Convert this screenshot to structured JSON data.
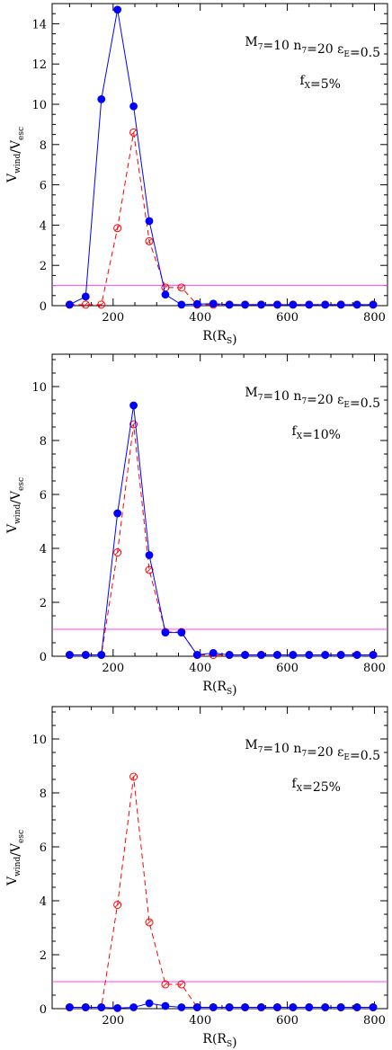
{
  "chart_data": [
    {
      "type": "line",
      "xlabel": "R(R_S)",
      "ylabel": "V_wind/V_esc",
      "xlim": [
        60,
        830
      ],
      "ylim": [
        0,
        15
      ],
      "yticks": [
        0,
        2,
        4,
        6,
        8,
        10,
        12,
        14
      ],
      "xticks": [
        200,
        400,
        600,
        800
      ],
      "annotation_line1": "M_7=10  n_7=20  ε_E=0.5",
      "annotation_line2": "f_X=5%",
      "hline": 1,
      "x": [
        100,
        137,
        173,
        210,
        247,
        283,
        320,
        357,
        393,
        430,
        467,
        503,
        540,
        577,
        613,
        650,
        687,
        723,
        760,
        797
      ],
      "series": [
        {
          "style": "solid-filled",
          "color": "#0000ff",
          "values": [
            0.05,
            0.45,
            10.25,
            14.7,
            9.9,
            4.2,
            0.55,
            0.05,
            0.08,
            0.1,
            0.05,
            0.05,
            0.05,
            0.05,
            0.05,
            0.05,
            0.05,
            0.05,
            0.05,
            0.05
          ]
        },
        {
          "style": "dashed-open",
          "color": "#ff0000",
          "values": [
            0.05,
            0.05,
            0.05,
            3.85,
            8.6,
            3.2,
            0.9,
            0.9,
            0.05,
            0.05,
            0.05,
            0.05,
            0.05,
            0.05,
            0.05,
            0.05,
            0.05,
            0.05,
            0.05,
            0.05
          ]
        }
      ]
    },
    {
      "type": "line",
      "xlabel": "R(R_S)",
      "ylabel": "V_wind/V_esc",
      "xlim": [
        60,
        830
      ],
      "ylim": [
        0,
        11.2
      ],
      "yticks": [
        0,
        2,
        4,
        6,
        8,
        10
      ],
      "xticks": [
        200,
        400,
        600,
        800
      ],
      "annotation_line1": "M_7=10  n_7=20  ε_E=0.5",
      "annotation_line2": "f_X=10%",
      "hline": 1,
      "x": [
        100,
        137,
        173,
        210,
        247,
        283,
        320,
        357,
        393,
        430,
        467,
        503,
        540,
        577,
        613,
        650,
        687,
        723,
        760,
        797
      ],
      "series": [
        {
          "style": "solid-filled",
          "color": "#0000ff",
          "values": [
            0.05,
            0.05,
            0.05,
            5.3,
            9.3,
            3.75,
            0.88,
            0.88,
            0.05,
            0.12,
            0.05,
            0.05,
            0.05,
            0.05,
            0.05,
            0.05,
            0.05,
            0.05,
            0.05,
            0.05
          ]
        },
        {
          "style": "dashed-open",
          "color": "#ff0000",
          "values": [
            0.05,
            0.05,
            0.05,
            3.85,
            8.6,
            3.2,
            0.9,
            0.9,
            0.05,
            0.05,
            0.05,
            0.05,
            0.05,
            0.05,
            0.05,
            0.05,
            0.05,
            0.05,
            0.05,
            0.05
          ]
        }
      ]
    },
    {
      "type": "line",
      "xlabel": "R(R_S)",
      "ylabel": "V_wind/V_esc",
      "xlim": [
        60,
        830
      ],
      "ylim": [
        0,
        11.2
      ],
      "yticks": [
        0,
        2,
        4,
        6,
        8,
        10
      ],
      "xticks": [
        200,
        400,
        600,
        800
      ],
      "annotation_line1": "M_7=10  n_7=20  ε_E=0.5",
      "annotation_line2": "f_X=25%",
      "hline": 1,
      "x": [
        100,
        137,
        173,
        210,
        247,
        283,
        320,
        357,
        393,
        430,
        467,
        503,
        540,
        577,
        613,
        650,
        687,
        723,
        760,
        797
      ],
      "series": [
        {
          "style": "solid-filled",
          "color": "#0000ff",
          "values": [
            0.05,
            0.05,
            0.05,
            0.02,
            0.05,
            0.2,
            0.1,
            0.05,
            0.05,
            0.05,
            0.05,
            0.05,
            0.05,
            0.05,
            0.05,
            0.05,
            0.05,
            0.05,
            0.05,
            0.05
          ]
        },
        {
          "style": "dashed-open",
          "color": "#ff0000",
          "values": [
            0.05,
            0.05,
            0.05,
            3.85,
            8.6,
            3.2,
            0.9,
            0.9,
            0.05,
            0.05,
            0.05,
            0.05,
            0.05,
            0.05,
            0.05,
            0.05,
            0.05,
            0.05,
            0.05,
            0.05
          ]
        }
      ]
    }
  ],
  "colors": {
    "hline": "#ff44ff",
    "series_solid": "#0000ff",
    "series_dashed": "#ff0000"
  }
}
